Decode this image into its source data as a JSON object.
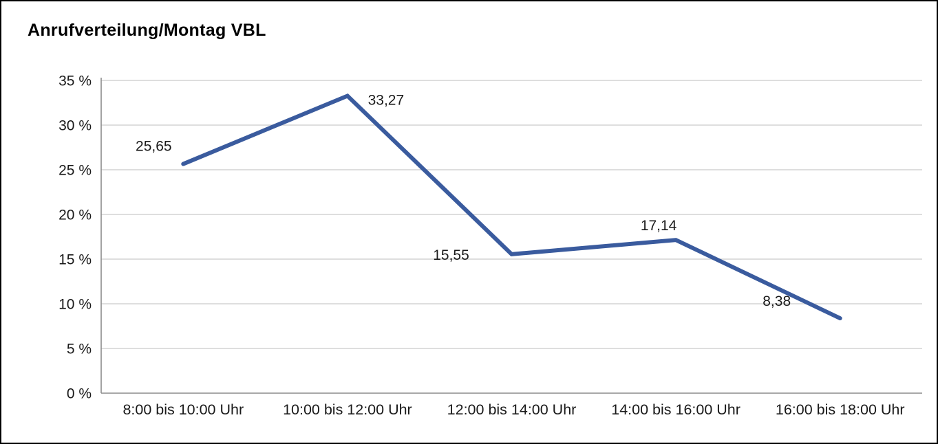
{
  "chart_data": {
    "type": "line",
    "title": "Anrufverteilung/Montag VBL",
    "categories": [
      "8:00 bis 10:00 Uhr",
      "10:00 bis 12:00 Uhr",
      "12:00 bis 14:00 Uhr",
      "14:00 bis 16:00 Uhr",
      "16:00 bis 18:00 Uhr"
    ],
    "values": [
      25.65,
      33.27,
      15.55,
      17.14,
      8.38
    ],
    "value_labels": [
      "25,65",
      "33,27",
      "15,55",
      "17,14",
      "8,38"
    ],
    "xlabel": "",
    "ylabel": "",
    "ylim": [
      0,
      35
    ],
    "ytick_step": 5,
    "ytick_labels": [
      "0 %",
      "5 %",
      "10 %",
      "15 %",
      "20 %",
      "25 %",
      "30 %",
      "35 %"
    ],
    "grid": true,
    "legend": "none",
    "line_color": "#3a5b9e",
    "grid_color": "#c9c9c9",
    "axis_color": "#8c8c8c",
    "text_color": "#1a1a1a"
  }
}
